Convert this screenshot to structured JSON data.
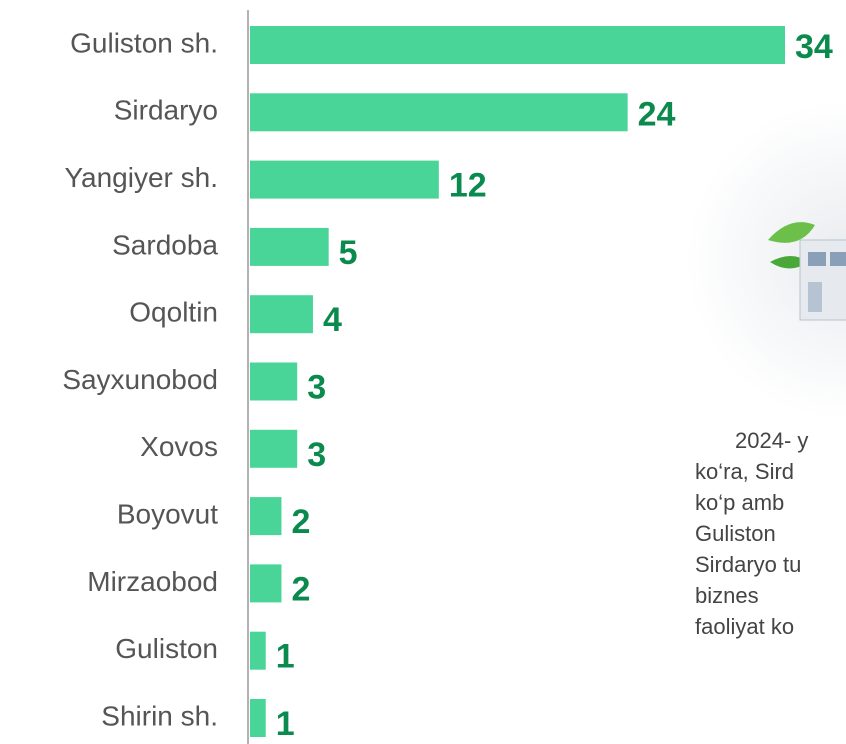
{
  "chart_data": {
    "type": "bar",
    "orientation": "horizontal",
    "categories": [
      "Guliston sh.",
      "Sirdaryo",
      "Yangiyer sh.",
      "Sardoba",
      "Oqoltin",
      "Sayxunobod",
      "Xovos",
      "Boyovut",
      "Mirzaobod",
      "Guliston",
      "Shirin sh."
    ],
    "values": [
      34,
      24,
      12,
      5,
      4,
      3,
      3,
      2,
      2,
      1,
      1
    ],
    "color": "#48d597",
    "annotations": [
      "2024- y",
      "ko‘ra, Sird",
      "ko‘p amb",
      "Guliston",
      "Sirdaryo tu",
      "biznes",
      "faoliyat ko"
    ]
  }
}
